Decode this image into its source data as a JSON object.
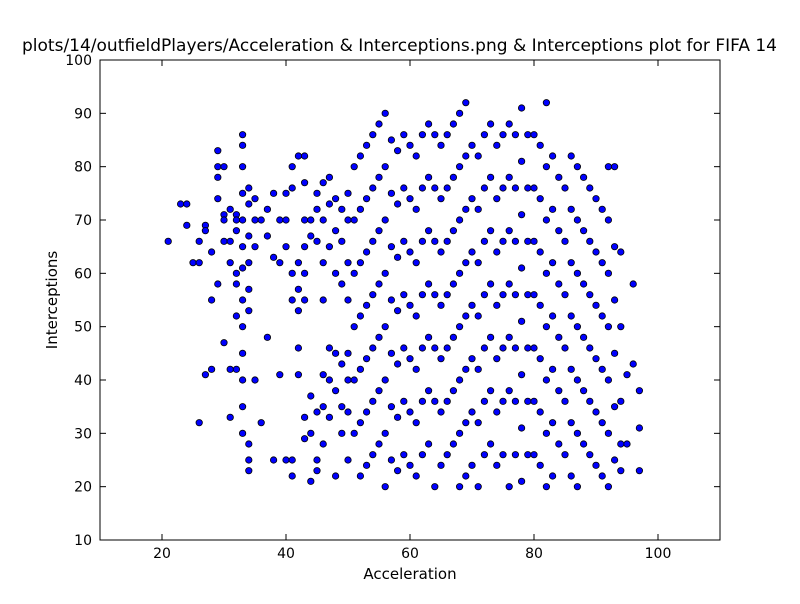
{
  "chart_data": {
    "type": "scatter",
    "title": "plots/14/outfieldPlayers/Acceleration & Interceptions.png & Interceptions plot for FIFA 14",
    "xlabel": "Acceleration",
    "ylabel": "Interceptions",
    "xlim": [
      10,
      110
    ],
    "ylim": [
      10,
      100
    ],
    "xticks": [
      20,
      40,
      60,
      80,
      100
    ],
    "yticks": [
      10,
      20,
      30,
      40,
      50,
      60,
      70,
      80,
      90,
      100
    ],
    "grid": false,
    "marker_color": "#0000ff",
    "marker_edge": "#000000",
    "points": [
      [
        21,
        66
      ],
      [
        23,
        73
      ],
      [
        24,
        73
      ],
      [
        24,
        69
      ],
      [
        25,
        62
      ],
      [
        26,
        62
      ],
      [
        26,
        66
      ],
      [
        27,
        69
      ],
      [
        27,
        68
      ],
      [
        28,
        64
      ],
      [
        28,
        55
      ],
      [
        29,
        58
      ],
      [
        29,
        78
      ],
      [
        29,
        74
      ],
      [
        29,
        83
      ],
      [
        29,
        80
      ],
      [
        30,
        80
      ],
      [
        30,
        71
      ],
      [
        30,
        70
      ],
      [
        30,
        66
      ],
      [
        31,
        72
      ],
      [
        31,
        66
      ],
      [
        31,
        62
      ],
      [
        32,
        71
      ],
      [
        32,
        70
      ],
      [
        32,
        68
      ],
      [
        32,
        60
      ],
      [
        32,
        58
      ],
      [
        32,
        52
      ],
      [
        33,
        80
      ],
      [
        33,
        84
      ],
      [
        33,
        86
      ],
      [
        33,
        75
      ],
      [
        33,
        70
      ],
      [
        33,
        65
      ],
      [
        33,
        61
      ],
      [
        33,
        55
      ],
      [
        33,
        50
      ],
      [
        34,
        76
      ],
      [
        34,
        73
      ],
      [
        34,
        67
      ],
      [
        34,
        62
      ],
      [
        34,
        57
      ],
      [
        34,
        53
      ],
      [
        35,
        70
      ],
      [
        35,
        65
      ],
      [
        35,
        74
      ],
      [
        36,
        70
      ],
      [
        37,
        67
      ],
      [
        37,
        72
      ],
      [
        38,
        75
      ],
      [
        38,
        63
      ],
      [
        39,
        70
      ],
      [
        39,
        62
      ],
      [
        40,
        65
      ],
      [
        40,
        70
      ],
      [
        40,
        75
      ],
      [
        41,
        76
      ],
      [
        41,
        80
      ],
      [
        41,
        60
      ],
      [
        41,
        55
      ],
      [
        42,
        82
      ],
      [
        42,
        62
      ],
      [
        42,
        57
      ],
      [
        42,
        53
      ],
      [
        43,
        77
      ],
      [
        43,
        70
      ],
      [
        43,
        82
      ],
      [
        43,
        65
      ],
      [
        43,
        60
      ],
      [
        43,
        55
      ],
      [
        44,
        70
      ],
      [
        44,
        67
      ],
      [
        45,
        75
      ],
      [
        45,
        72
      ],
      [
        45,
        66
      ],
      [
        46,
        77
      ],
      [
        46,
        70
      ],
      [
        46,
        62
      ],
      [
        46,
        55
      ],
      [
        47,
        78
      ],
      [
        47,
        73
      ],
      [
        47,
        65
      ],
      [
        48,
        74
      ],
      [
        48,
        68
      ],
      [
        48,
        60
      ],
      [
        49,
        72
      ],
      [
        49,
        66
      ],
      [
        49,
        58
      ],
      [
        50,
        75
      ],
      [
        50,
        70
      ],
      [
        50,
        62
      ],
      [
        50,
        55
      ],
      [
        27,
        41
      ],
      [
        28,
        42
      ],
      [
        26,
        32
      ],
      [
        30,
        47
      ],
      [
        31,
        42
      ],
      [
        31,
        33
      ],
      [
        32,
        42
      ],
      [
        33,
        45
      ],
      [
        33,
        40
      ],
      [
        33,
        35
      ],
      [
        33,
        30
      ],
      [
        34,
        28
      ],
      [
        34,
        25
      ],
      [
        34,
        23
      ],
      [
        35,
        40
      ],
      [
        36,
        32
      ],
      [
        37,
        48
      ],
      [
        38,
        25
      ],
      [
        39,
        41
      ],
      [
        40,
        25
      ],
      [
        41,
        25
      ],
      [
        41,
        22
      ],
      [
        42,
        41
      ],
      [
        42,
        46
      ],
      [
        43,
        33
      ],
      [
        43,
        29
      ],
      [
        44,
        37
      ],
      [
        44,
        30
      ],
      [
        44,
        21
      ],
      [
        45,
        34
      ],
      [
        45,
        25
      ],
      [
        45,
        23
      ],
      [
        46,
        41
      ],
      [
        46,
        35
      ],
      [
        46,
        28
      ],
      [
        47,
        46
      ],
      [
        47,
        40
      ],
      [
        47,
        33
      ],
      [
        48,
        45
      ],
      [
        48,
        38
      ],
      [
        48,
        22
      ],
      [
        49,
        43
      ],
      [
        49,
        35
      ],
      [
        49,
        30
      ],
      [
        50,
        45
      ],
      [
        50,
        40
      ],
      [
        50,
        34
      ],
      [
        50,
        25
      ],
      [
        51,
        80
      ],
      [
        51,
        70
      ],
      [
        51,
        60
      ],
      [
        51,
        50
      ],
      [
        51,
        40
      ],
      [
        51,
        30
      ],
      [
        52,
        82
      ],
      [
        52,
        72
      ],
      [
        52,
        62
      ],
      [
        52,
        52
      ],
      [
        52,
        42
      ],
      [
        52,
        32
      ],
      [
        52,
        22
      ],
      [
        53,
        84
      ],
      [
        53,
        74
      ],
      [
        53,
        64
      ],
      [
        53,
        54
      ],
      [
        53,
        44
      ],
      [
        53,
        34
      ],
      [
        53,
        24
      ],
      [
        54,
        86
      ],
      [
        54,
        76
      ],
      [
        54,
        66
      ],
      [
        54,
        56
      ],
      [
        54,
        46
      ],
      [
        54,
        36
      ],
      [
        54,
        26
      ],
      [
        55,
        88
      ],
      [
        55,
        78
      ],
      [
        55,
        68
      ],
      [
        55,
        58
      ],
      [
        55,
        48
      ],
      [
        55,
        38
      ],
      [
        55,
        28
      ],
      [
        56,
        90
      ],
      [
        56,
        80
      ],
      [
        56,
        70
      ],
      [
        56,
        60
      ],
      [
        56,
        50
      ],
      [
        56,
        40
      ],
      [
        56,
        30
      ],
      [
        56,
        20
      ],
      [
        57,
        85
      ],
      [
        57,
        75
      ],
      [
        57,
        65
      ],
      [
        57,
        55
      ],
      [
        57,
        45
      ],
      [
        57,
        35
      ],
      [
        57,
        25
      ],
      [
        58,
        83
      ],
      [
        58,
        73
      ],
      [
        58,
        63
      ],
      [
        58,
        53
      ],
      [
        58,
        43
      ],
      [
        58,
        33
      ],
      [
        58,
        23
      ],
      [
        59,
        86
      ],
      [
        59,
        76
      ],
      [
        59,
        66
      ],
      [
        59,
        56
      ],
      [
        59,
        46
      ],
      [
        59,
        36
      ],
      [
        59,
        26
      ],
      [
        60,
        84
      ],
      [
        60,
        74
      ],
      [
        60,
        64
      ],
      [
        60,
        54
      ],
      [
        60,
        44
      ],
      [
        60,
        34
      ],
      [
        60,
        24
      ],
      [
        61,
        82
      ],
      [
        61,
        72
      ],
      [
        61,
        62
      ],
      [
        61,
        52
      ],
      [
        61,
        42
      ],
      [
        61,
        32
      ],
      [
        61,
        22
      ],
      [
        62,
        86
      ],
      [
        62,
        76
      ],
      [
        62,
        66
      ],
      [
        62,
        56
      ],
      [
        62,
        46
      ],
      [
        62,
        36
      ],
      [
        62,
        26
      ],
      [
        63,
        88
      ],
      [
        63,
        78
      ],
      [
        63,
        68
      ],
      [
        63,
        58
      ],
      [
        63,
        48
      ],
      [
        63,
        38
      ],
      [
        63,
        28
      ],
      [
        64,
        86
      ],
      [
        64,
        76
      ],
      [
        64,
        66
      ],
      [
        64,
        56
      ],
      [
        64,
        46
      ],
      [
        64,
        36
      ],
      [
        64,
        20
      ],
      [
        65,
        84
      ],
      [
        65,
        74
      ],
      [
        65,
        64
      ],
      [
        65,
        54
      ],
      [
        65,
        44
      ],
      [
        65,
        34
      ],
      [
        65,
        24
      ],
      [
        66,
        86
      ],
      [
        66,
        76
      ],
      [
        66,
        66
      ],
      [
        66,
        56
      ],
      [
        66,
        46
      ],
      [
        66,
        36
      ],
      [
        66,
        26
      ],
      [
        67,
        88
      ],
      [
        67,
        78
      ],
      [
        67,
        68
      ],
      [
        67,
        58
      ],
      [
        67,
        48
      ],
      [
        67,
        38
      ],
      [
        67,
        28
      ],
      [
        68,
        90
      ],
      [
        68,
        80
      ],
      [
        68,
        70
      ],
      [
        68,
        60
      ],
      [
        68,
        50
      ],
      [
        68,
        40
      ],
      [
        68,
        30
      ],
      [
        68,
        20
      ],
      [
        69,
        92
      ],
      [
        69,
        82
      ],
      [
        69,
        72
      ],
      [
        69,
        62
      ],
      [
        69,
        52
      ],
      [
        69,
        42
      ],
      [
        69,
        32
      ],
      [
        69,
        22
      ],
      [
        70,
        84
      ],
      [
        70,
        74
      ],
      [
        70,
        64
      ],
      [
        70,
        54
      ],
      [
        70,
        44
      ],
      [
        70,
        34
      ],
      [
        70,
        24
      ],
      [
        71,
        82
      ],
      [
        71,
        72
      ],
      [
        71,
        62
      ],
      [
        71,
        52
      ],
      [
        71,
        42
      ],
      [
        71,
        32
      ],
      [
        71,
        20
      ],
      [
        72,
        86
      ],
      [
        72,
        76
      ],
      [
        72,
        66
      ],
      [
        72,
        56
      ],
      [
        72,
        46
      ],
      [
        72,
        36
      ],
      [
        72,
        26
      ],
      [
        73,
        88
      ],
      [
        73,
        78
      ],
      [
        73,
        68
      ],
      [
        73,
        58
      ],
      [
        73,
        48
      ],
      [
        73,
        38
      ],
      [
        73,
        28
      ],
      [
        74,
        84
      ],
      [
        74,
        74
      ],
      [
        74,
        64
      ],
      [
        74,
        54
      ],
      [
        74,
        44
      ],
      [
        74,
        34
      ],
      [
        74,
        24
      ],
      [
        75,
        86
      ],
      [
        75,
        76
      ],
      [
        75,
        66
      ],
      [
        75,
        56
      ],
      [
        75,
        46
      ],
      [
        75,
        36
      ],
      [
        75,
        26
      ],
      [
        76,
        88
      ],
      [
        76,
        78
      ],
      [
        76,
        68
      ],
      [
        76,
        58
      ],
      [
        76,
        48
      ],
      [
        76,
        38
      ],
      [
        76,
        20
      ],
      [
        77,
        86
      ],
      [
        77,
        76
      ],
      [
        77,
        66
      ],
      [
        77,
        56
      ],
      [
        77,
        46
      ],
      [
        77,
        36
      ],
      [
        77,
        26
      ],
      [
        78,
        91
      ],
      [
        78,
        81
      ],
      [
        78,
        71
      ],
      [
        78,
        61
      ],
      [
        78,
        51
      ],
      [
        78,
        41
      ],
      [
        78,
        31
      ],
      [
        78,
        21
      ],
      [
        79,
        86
      ],
      [
        79,
        76
      ],
      [
        79,
        66
      ],
      [
        79,
        56
      ],
      [
        79,
        46
      ],
      [
        79,
        36
      ],
      [
        79,
        26
      ],
      [
        80,
        86
      ],
      [
        80,
        76
      ],
      [
        80,
        66
      ],
      [
        80,
        56
      ],
      [
        80,
        46
      ],
      [
        80,
        36
      ],
      [
        80,
        26
      ],
      [
        81,
        84
      ],
      [
        81,
        74
      ],
      [
        81,
        64
      ],
      [
        81,
        54
      ],
      [
        81,
        44
      ],
      [
        81,
        34
      ],
      [
        81,
        24
      ],
      [
        82,
        92
      ],
      [
        82,
        80
      ],
      [
        82,
        70
      ],
      [
        82,
        60
      ],
      [
        82,
        50
      ],
      [
        82,
        40
      ],
      [
        82,
        30
      ],
      [
        82,
        20
      ],
      [
        83,
        82
      ],
      [
        83,
        72
      ],
      [
        83,
        62
      ],
      [
        83,
        52
      ],
      [
        83,
        42
      ],
      [
        83,
        32
      ],
      [
        83,
        22
      ],
      [
        84,
        78
      ],
      [
        84,
        68
      ],
      [
        84,
        58
      ],
      [
        84,
        48
      ],
      [
        84,
        38
      ],
      [
        84,
        28
      ],
      [
        85,
        76
      ],
      [
        85,
        66
      ],
      [
        85,
        56
      ],
      [
        85,
        46
      ],
      [
        85,
        36
      ],
      [
        85,
        26
      ],
      [
        86,
        82
      ],
      [
        86,
        72
      ],
      [
        86,
        62
      ],
      [
        86,
        52
      ],
      [
        86,
        42
      ],
      [
        86,
        32
      ],
      [
        86,
        22
      ],
      [
        87,
        80
      ],
      [
        87,
        70
      ],
      [
        87,
        60
      ],
      [
        87,
        50
      ],
      [
        87,
        40
      ],
      [
        87,
        30
      ],
      [
        87,
        20
      ],
      [
        88,
        78
      ],
      [
        88,
        68
      ],
      [
        88,
        58
      ],
      [
        88,
        48
      ],
      [
        88,
        38
      ],
      [
        88,
        28
      ],
      [
        89,
        76
      ],
      [
        89,
        66
      ],
      [
        89,
        56
      ],
      [
        89,
        46
      ],
      [
        89,
        36
      ],
      [
        89,
        26
      ],
      [
        90,
        74
      ],
      [
        90,
        64
      ],
      [
        90,
        54
      ],
      [
        90,
        44
      ],
      [
        90,
        34
      ],
      [
        90,
        24
      ],
      [
        91,
        72
      ],
      [
        91,
        62
      ],
      [
        91,
        52
      ],
      [
        91,
        42
      ],
      [
        91,
        32
      ],
      [
        91,
        22
      ],
      [
        92,
        80
      ],
      [
        92,
        70
      ],
      [
        92,
        60
      ],
      [
        92,
        50
      ],
      [
        92,
        40
      ],
      [
        92,
        30
      ],
      [
        92,
        20
      ],
      [
        93,
        80
      ],
      [
        93,
        65
      ],
      [
        93,
        55
      ],
      [
        93,
        45
      ],
      [
        93,
        35
      ],
      [
        93,
        25
      ],
      [
        94,
        64
      ],
      [
        94,
        50
      ],
      [
        94,
        36
      ],
      [
        94,
        28
      ],
      [
        94,
        23
      ],
      [
        95,
        41
      ],
      [
        95,
        28
      ],
      [
        96,
        58
      ],
      [
        96,
        43
      ],
      [
        97,
        38
      ],
      [
        97,
        31
      ],
      [
        97,
        23
      ]
    ]
  }
}
